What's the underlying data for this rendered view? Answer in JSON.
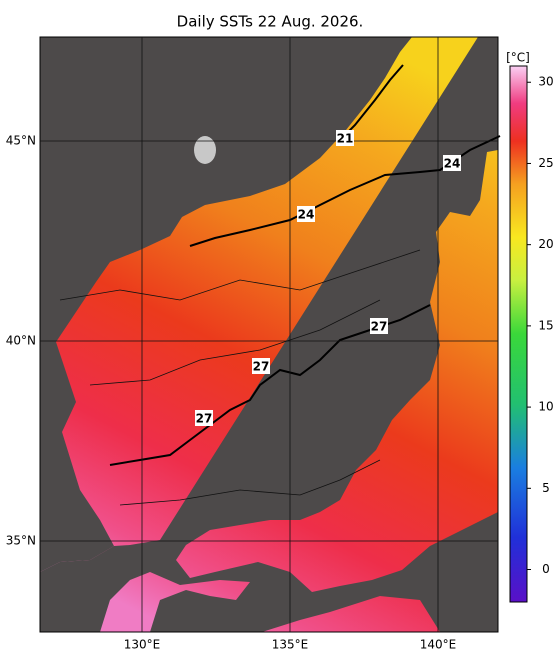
{
  "title": "Daily SSTs 22 Aug. 2026.",
  "map": {
    "lon_ticks": [
      {
        "value": 130,
        "label": "130°E"
      },
      {
        "value": 135,
        "label": "135°E"
      },
      {
        "value": 140,
        "label": "140°E"
      }
    ],
    "lat_ticks": [
      {
        "value": 35,
        "label": "35°N"
      },
      {
        "value": 40,
        "label": "40°N"
      },
      {
        "value": 45,
        "label": "45°N"
      }
    ],
    "contour_labels": [
      21,
      24,
      24,
      27,
      27,
      27
    ]
  },
  "colorbar": {
    "unit": "[°C]",
    "lim": [
      -2,
      31
    ],
    "ticks": [
      0,
      5,
      10,
      15,
      20,
      25,
      30
    ]
  }
}
